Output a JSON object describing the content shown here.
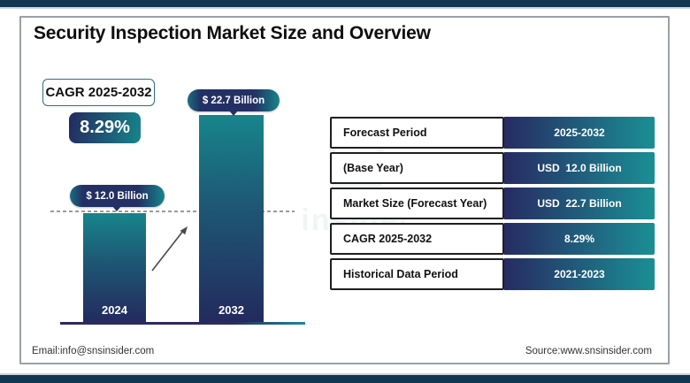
{
  "header": {
    "title": "Security Inspection Market Size and Overview"
  },
  "cagr_badge": {
    "label": "CAGR 2025-2032",
    "value": "8.29%"
  },
  "chart_data": {
    "type": "bar",
    "title": "Security Inspection Market Size and Overview",
    "categories": [
      "2024",
      "2032"
    ],
    "values": [
      12.0,
      22.7
    ],
    "unit": "USD Billion",
    "bar_value_labels": [
      "$ 12.0 Billion",
      "$ 22.7 Billion"
    ],
    "ylim": [
      0,
      24
    ],
    "reference_line": 12.0,
    "grid": "off",
    "legend_position": "none"
  },
  "table": {
    "rows": [
      {
        "label": "Forecast Period",
        "value": "2025-2032"
      },
      {
        "label": "(Base Year)",
        "value": "USD  12.0 Billion"
      },
      {
        "label": "Market Size (Forecast Year)",
        "value": "USD  22.7 Billion"
      },
      {
        "label": "CAGR 2025-2032",
        "value": "8.29%"
      },
      {
        "label": "Historical Data Period",
        "value": "2021-2023"
      }
    ]
  },
  "footer": {
    "email": "Email:info@snsinsider.com",
    "source": "Source:www.snsinsider.com"
  },
  "watermark": {
    "text": "insider"
  },
  "colors": {
    "navy": "#232a5e",
    "teal": "#17858b",
    "band_navy": "#113850",
    "band_light": "#ccd6e0",
    "frame_border": "#9aa0a6",
    "table_gradient_left": "#272b63",
    "table_gradient_right": "#1a8f94"
  }
}
